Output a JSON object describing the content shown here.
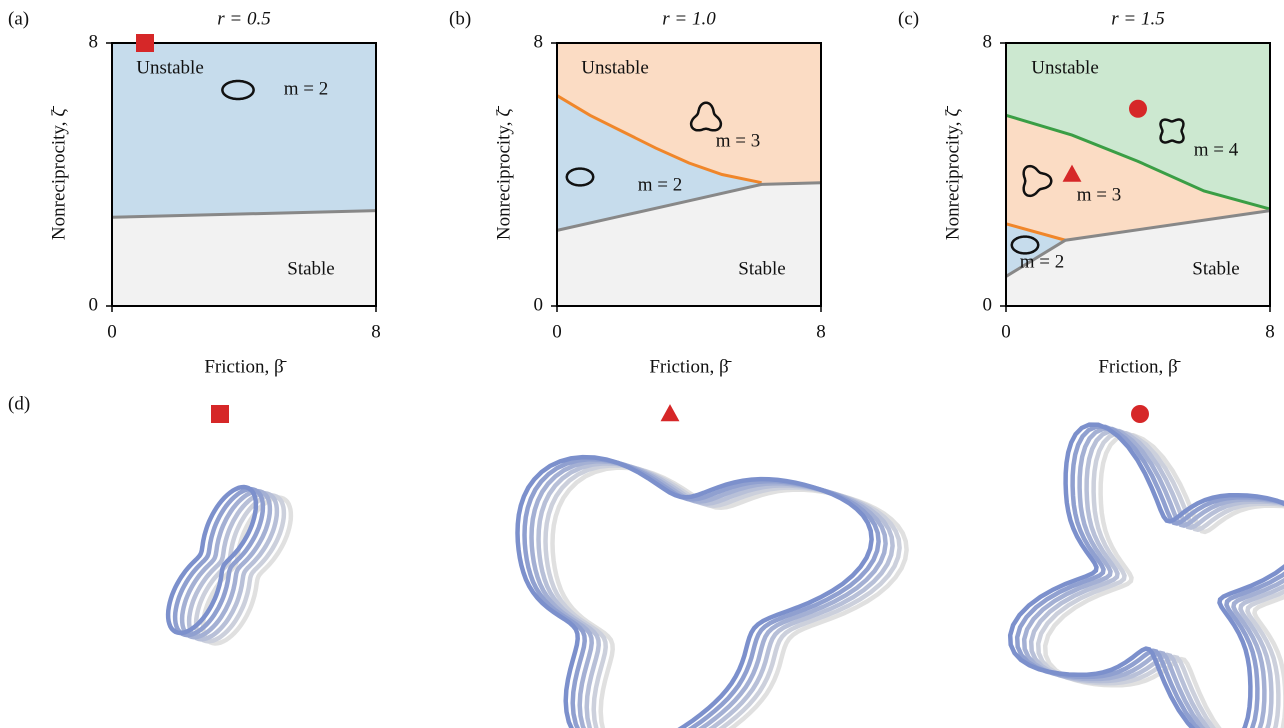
{
  "chart_data": [
    {
      "type": "phase",
      "panel": "(a)",
      "title": "r = 0.5",
      "xlabel": "Friction, β̄",
      "ylabel": "Nonreciprocity, ζ̄",
      "xlim": [
        0,
        8
      ],
      "ylim": [
        0,
        8
      ],
      "xticks": [
        0,
        8
      ],
      "yticks": [
        0,
        8
      ],
      "background": "#c6dcec",
      "series": [
        {
          "color": "#888888",
          "fill": "#f2f2f2",
          "x": [
            0,
            8
          ],
          "values": [
            2.7,
            2.9
          ]
        }
      ],
      "annotations": [
        "Unstable",
        "m = 2",
        "Stable"
      ],
      "points": [
        {
          "x": 1,
          "y": 8,
          "marker": "square",
          "color": "#d62728"
        }
      ]
    },
    {
      "type": "phase",
      "panel": "(b)",
      "title": "r = 1.0",
      "xlabel": "Friction, β̄",
      "ylabel": "Nonreciprocity, ζ̄",
      "xlim": [
        0,
        8
      ],
      "ylim": [
        0,
        8
      ],
      "xticks": [
        0,
        8
      ],
      "yticks": [
        0,
        8
      ],
      "background": "#fbdcc4",
      "series": [
        {
          "color": "#f0862a",
          "fill": "#c6dcec",
          "x": [
            0,
            1,
            2,
            3,
            4,
            5,
            6.2
          ],
          "values": [
            6.4,
            5.8,
            5.3,
            4.8,
            4.35,
            4.0,
            3.75
          ]
        },
        {
          "color": "#888888",
          "fill": "#f2f2f2",
          "x": [
            0,
            2,
            4,
            6.2,
            8
          ],
          "values": [
            2.3,
            2.75,
            3.2,
            3.7,
            3.75
          ]
        }
      ],
      "annotations": [
        "Unstable",
        "m = 3",
        "m = 2",
        "Stable"
      ],
      "points": []
    },
    {
      "type": "phase",
      "panel": "(c)",
      "title": "r = 1.5",
      "xlabel": "Friction, β̄",
      "ylabel": "Nonreciprocity, ζ̄",
      "xlim": [
        0,
        8
      ],
      "ylim": [
        0,
        8
      ],
      "xticks": [
        0,
        8
      ],
      "yticks": [
        0,
        8
      ],
      "background": "#cce8d0",
      "series": [
        {
          "color": "#3a9e45",
          "fill": "#fbdcc4",
          "x": [
            0,
            2,
            4,
            6,
            8
          ],
          "values": [
            5.8,
            5.2,
            4.4,
            3.5,
            2.95
          ]
        },
        {
          "color": "#f0862a",
          "fill": "#c6dcec",
          "x": [
            0,
            1.8
          ],
          "values": [
            2.5,
            2.0
          ]
        },
        {
          "color": "#888888",
          "fill": "#f2f2f2",
          "x": [
            0,
            1.8,
            8
          ],
          "values": [
            0.9,
            2.0,
            2.9
          ]
        }
      ],
      "annotations": [
        "Unstable",
        "m = 4",
        "m = 3",
        "m = 2",
        "Stable"
      ],
      "points": [
        {
          "x": 4,
          "y": 6,
          "marker": "circle",
          "color": "#d62728"
        },
        {
          "x": 2,
          "y": 4,
          "marker": "triangle",
          "color": "#d62728"
        }
      ]
    }
  ],
  "figure": {
    "panel_label": "(d)"
  }
}
